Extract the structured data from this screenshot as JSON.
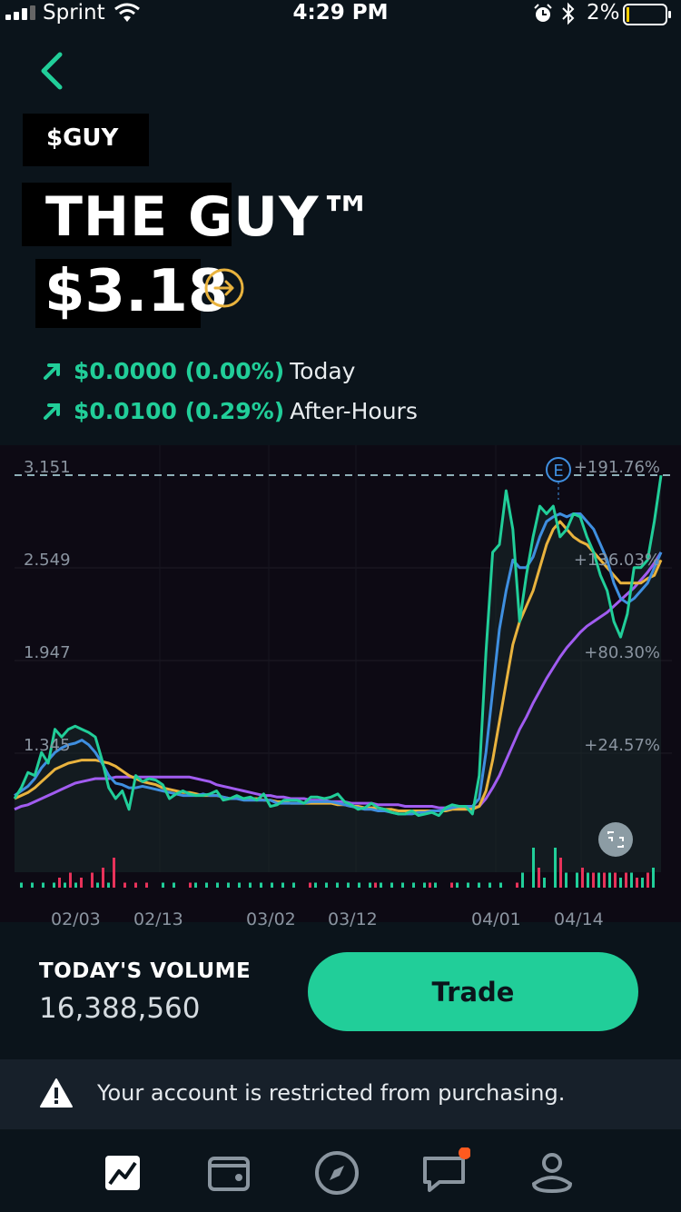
{
  "status_bar": {
    "carrier": "Sprint",
    "time": "4:29 PM",
    "battery_percent": "2%"
  },
  "header": {
    "ticker": "$GUY",
    "company_name": "THE GUY™",
    "price": "$3.18"
  },
  "changes": [
    {
      "value": "$0.0000 (0.00%)",
      "label": "Today"
    },
    {
      "value": "$0.0100 (0.29%)",
      "label": "After-Hours"
    }
  ],
  "chart_data": {
    "type": "line",
    "y_ticks": [
      "3.151",
      "2.549",
      "1.947",
      "1.345"
    ],
    "percent_ticks": [
      "+191.76%",
      "+136.03%",
      "+80.30%",
      "+24.57%"
    ],
    "x_labels": [
      "02/03",
      "02/13",
      "03/02",
      "03/12",
      "04/01",
      "04/14"
    ],
    "earnings_marker": "E",
    "ylim": [
      0.85,
      3.3
    ],
    "series": [
      {
        "color": "#21ce99",
        "values": [
          1.05,
          1.12,
          1.22,
          1.2,
          1.35,
          1.28,
          1.5,
          1.45,
          1.5,
          1.52,
          1.5,
          1.48,
          1.45,
          1.3,
          1.12,
          1.05,
          1.1,
          0.98,
          1.2,
          1.16,
          1.18,
          1.17,
          1.14,
          1.05,
          1.08,
          1.1,
          1.08,
          1.07,
          1.07,
          1.08,
          1.1,
          1.04,
          1.05,
          1.07,
          1.05,
          1.06,
          1.04,
          1.08,
          1.0,
          1.01,
          1.04,
          1.04,
          1.04,
          1.02,
          1.06,
          1.06,
          1.05,
          1.06,
          1.08,
          1.03,
          1.01,
          0.98,
          0.99,
          1.02,
          0.99,
          0.98,
          0.96,
          0.95,
          0.95,
          0.97,
          0.94,
          0.95,
          0.96,
          0.94,
          0.99,
          1.01,
          1.0,
          1.0,
          0.95,
          1.2,
          2.0,
          2.65,
          2.7,
          3.05,
          2.8,
          2.2,
          2.5,
          2.75,
          2.95,
          2.9,
          2.95,
          2.75,
          2.8,
          2.9,
          2.88,
          2.75,
          2.65,
          2.5,
          2.4,
          2.2,
          2.1,
          2.25,
          2.55,
          2.55,
          2.6,
          2.85,
          3.15
        ]
      },
      {
        "color": "#3f8fe0",
        "values": [
          1.07,
          1.1,
          1.13,
          1.18,
          1.25,
          1.3,
          1.35,
          1.38,
          1.4,
          1.41,
          1.43,
          1.4,
          1.35,
          1.28,
          1.2,
          1.15,
          1.14,
          1.12,
          1.12,
          1.13,
          1.12,
          1.11,
          1.1,
          1.09,
          1.08,
          1.07,
          1.07,
          1.07,
          1.08,
          1.07,
          1.07,
          1.06,
          1.05,
          1.05,
          1.04,
          1.04,
          1.04,
          1.04,
          1.04,
          1.02,
          1.02,
          1.02,
          1.02,
          1.02,
          1.03,
          1.03,
          1.03,
          1.03,
          1.02,
          1.01,
          1.0,
          0.99,
          0.98,
          0.98,
          0.97,
          0.97,
          0.96,
          0.95,
          0.95,
          0.95,
          0.96,
          0.96,
          0.97,
          0.97,
          0.98,
          0.99,
          1.0,
          1.0,
          1.0,
          1.05,
          1.35,
          1.75,
          2.15,
          2.4,
          2.6,
          2.55,
          2.55,
          2.62,
          2.75,
          2.85,
          2.88,
          2.9,
          2.88,
          2.9,
          2.9,
          2.85,
          2.8,
          2.7,
          2.6,
          2.45,
          2.35,
          2.32,
          2.35,
          2.4,
          2.45,
          2.55,
          2.65
        ]
      },
      {
        "color": "#e9b33e",
        "values": [
          1.05,
          1.07,
          1.09,
          1.12,
          1.16,
          1.2,
          1.24,
          1.26,
          1.28,
          1.29,
          1.3,
          1.3,
          1.3,
          1.29,
          1.28,
          1.26,
          1.23,
          1.2,
          1.18,
          1.16,
          1.15,
          1.14,
          1.12,
          1.11,
          1.1,
          1.09,
          1.09,
          1.08,
          1.07,
          1.07,
          1.07,
          1.06,
          1.05,
          1.05,
          1.05,
          1.05,
          1.05,
          1.04,
          1.04,
          1.03,
          1.03,
          1.02,
          1.02,
          1.02,
          1.02,
          1.02,
          1.02,
          1.02,
          1.01,
          1.01,
          1.0,
          1.0,
          0.99,
          0.99,
          0.99,
          0.98,
          0.98,
          0.97,
          0.97,
          0.97,
          0.97,
          0.97,
          0.97,
          0.97,
          0.97,
          0.98,
          0.98,
          0.98,
          0.98,
          1.0,
          1.1,
          1.3,
          1.55,
          1.8,
          2.05,
          2.2,
          2.3,
          2.4,
          2.55,
          2.7,
          2.8,
          2.85,
          2.8,
          2.75,
          2.72,
          2.7,
          2.65,
          2.6,
          2.55,
          2.5,
          2.45,
          2.45,
          2.45,
          2.45,
          2.48,
          2.5,
          2.6
        ]
      },
      {
        "color": "#a15cf0",
        "values": [
          0.98,
          1.0,
          1.01,
          1.03,
          1.05,
          1.07,
          1.09,
          1.11,
          1.13,
          1.15,
          1.16,
          1.17,
          1.18,
          1.18,
          1.18,
          1.19,
          1.19,
          1.19,
          1.19,
          1.19,
          1.19,
          1.19,
          1.19,
          1.19,
          1.19,
          1.19,
          1.19,
          1.18,
          1.17,
          1.16,
          1.14,
          1.13,
          1.12,
          1.11,
          1.1,
          1.09,
          1.08,
          1.07,
          1.07,
          1.06,
          1.06,
          1.05,
          1.05,
          1.05,
          1.04,
          1.04,
          1.04,
          1.03,
          1.03,
          1.03,
          1.02,
          1.02,
          1.02,
          1.02,
          1.01,
          1.01,
          1.01,
          1.01,
          1.0,
          1.0,
          1.0,
          1.0,
          1.0,
          0.99,
          0.99,
          0.99,
          0.99,
          0.99,
          0.99,
          1.0,
          1.05,
          1.12,
          1.2,
          1.3,
          1.4,
          1.5,
          1.58,
          1.67,
          1.75,
          1.83,
          1.9,
          1.97,
          2.03,
          2.08,
          2.13,
          2.17,
          2.2,
          2.23,
          2.26,
          2.3,
          2.34,
          2.38,
          2.42,
          2.47,
          2.52,
          2.58,
          2.65
        ]
      }
    ],
    "volume_bars": [
      {
        "color": "#21ce99",
        "values": [
          1,
          1,
          1,
          1,
          1,
          1,
          0,
          1,
          1,
          0,
          0,
          0,
          0,
          1,
          1,
          0,
          1,
          1,
          1,
          1,
          1,
          1,
          1,
          1,
          1,
          1,
          0,
          1,
          1,
          1,
          1,
          1,
          1,
          1,
          1,
          1,
          1,
          1,
          1,
          0,
          1,
          1,
          1,
          1,
          1,
          0,
          3,
          8,
          2,
          8,
          3,
          3,
          3,
          3,
          3,
          2,
          3,
          2,
          4
        ]
      },
      {
        "color": "#e8325a",
        "values": [
          0,
          0,
          0,
          2,
          3,
          2,
          3,
          4,
          6,
          1,
          1,
          1,
          0,
          0,
          0,
          1,
          0,
          0,
          0,
          0,
          0,
          0,
          0,
          0,
          0,
          0,
          1,
          0,
          0,
          0,
          0,
          0,
          1,
          0,
          0,
          0,
          0,
          1,
          0,
          1,
          0,
          0,
          0,
          0,
          0,
          1,
          0,
          4,
          0,
          6,
          0,
          4,
          3,
          3,
          3,
          3,
          2,
          3,
          0
        ]
      }
    ]
  },
  "volume": {
    "title": "TODAY'S VOLUME",
    "value": "16,388,560"
  },
  "actions": {
    "trade_label": "Trade"
  },
  "warning": {
    "text": "Your account is restricted from purchasing."
  },
  "tabs": [
    {
      "icon": "chart-icon"
    },
    {
      "icon": "wallet-icon"
    },
    {
      "icon": "compass-icon"
    },
    {
      "icon": "messages-icon"
    },
    {
      "icon": "profile-icon"
    }
  ],
  "colors": {
    "accent": "#21ce99",
    "negative": "#e8325a",
    "background": "#0b141b",
    "notification": "#ff5a1f"
  }
}
